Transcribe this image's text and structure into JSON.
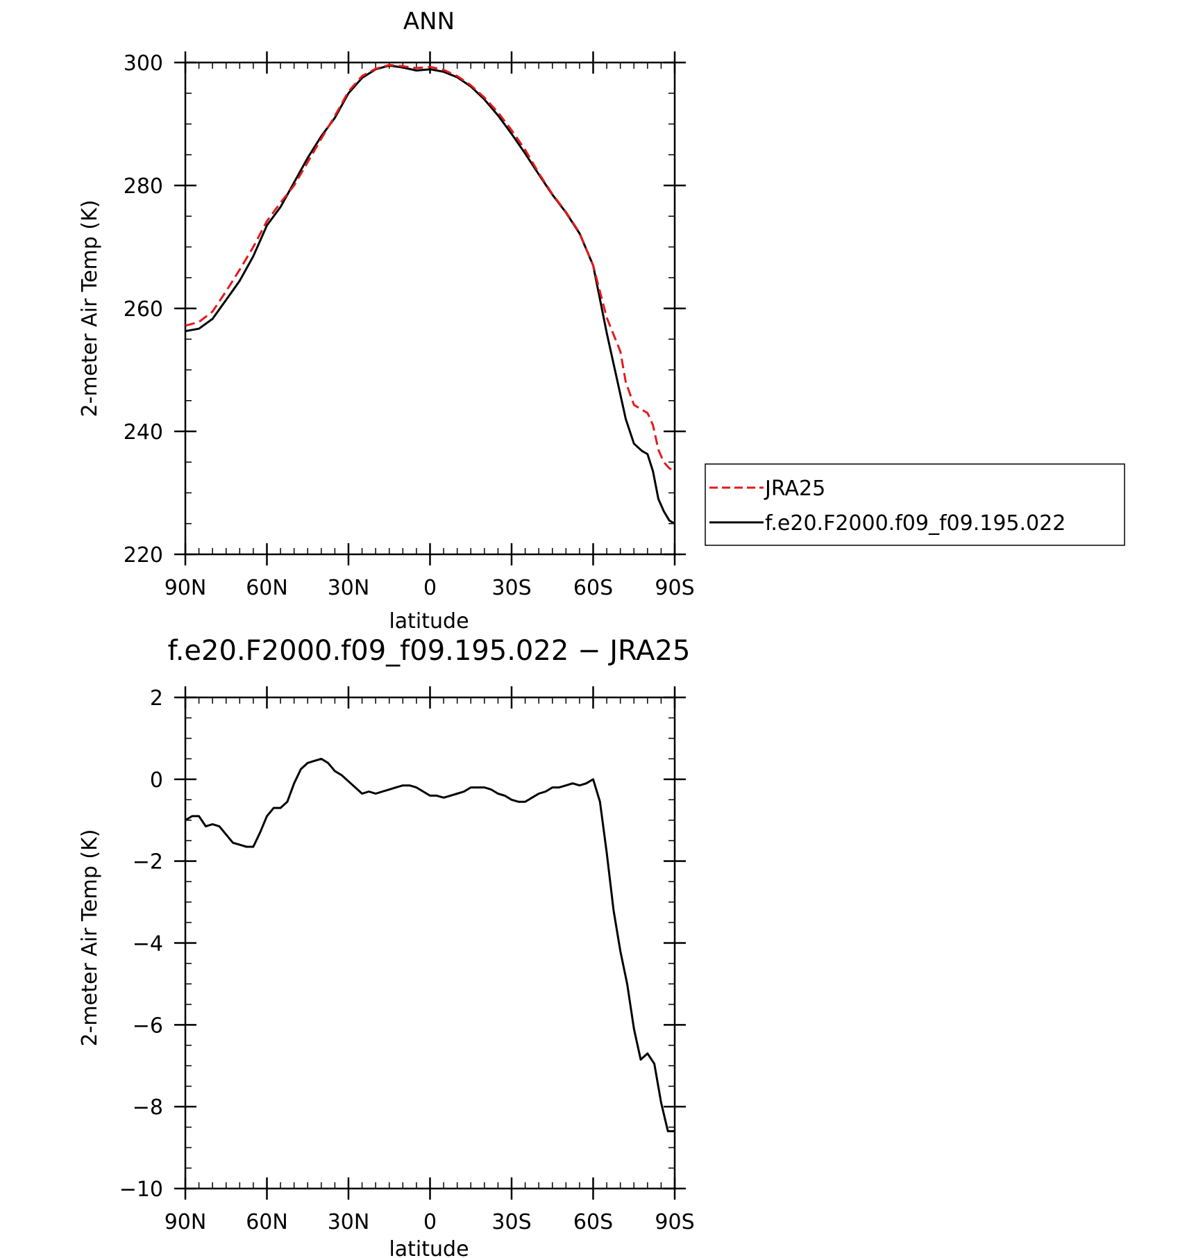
{
  "chart_data": [
    {
      "type": "line",
      "title": "ANN",
      "xlabel": "latitude",
      "ylabel": "2-meter Air Temp (K)",
      "xlim": [
        90,
        -90
      ],
      "ylim": [
        220,
        300
      ],
      "xticks": [
        {
          "value": 90,
          "label": "90N"
        },
        {
          "value": 60,
          "label": "60N"
        },
        {
          "value": 30,
          "label": "30N"
        },
        {
          "value": 0,
          "label": "0"
        },
        {
          "value": -30,
          "label": "30S"
        },
        {
          "value": -60,
          "label": "60S"
        },
        {
          "value": -90,
          "label": "90S"
        }
      ],
      "yticks": [
        {
          "value": 220,
          "label": "220"
        },
        {
          "value": 240,
          "label": "240"
        },
        {
          "value": 260,
          "label": "260"
        },
        {
          "value": 280,
          "label": "280"
        },
        {
          "value": 300,
          "label": "300"
        }
      ],
      "grid": false,
      "legend": "right",
      "series": [
        {
          "name": "JRA25",
          "color": "#e31a1c",
          "dash": "dashed",
          "x": [
            90,
            85,
            80,
            75,
            70,
            65,
            60,
            55,
            50,
            45,
            40,
            35,
            30,
            25,
            20,
            15,
            10,
            5,
            0,
            -5,
            -10,
            -15,
            -20,
            -25,
            -30,
            -35,
            -40,
            -45,
            -50,
            -55,
            -60,
            -65,
            -70,
            -72,
            -75,
            -78,
            -80,
            -82,
            -84,
            -86,
            -88,
            -90
          ],
          "y": [
            257.2,
            257.8,
            259.5,
            262.8,
            266.3,
            270.0,
            274.2,
            277.2,
            280.0,
            283.8,
            287.6,
            291.3,
            295.3,
            297.8,
            299.0,
            299.6,
            299.4,
            299.1,
            299.3,
            298.8,
            297.8,
            296.3,
            294.3,
            291.9,
            289.0,
            285.8,
            282.0,
            278.6,
            275.7,
            272.3,
            267.0,
            258.5,
            253.0,
            248.0,
            244.3,
            243.5,
            243.0,
            241.0,
            237.0,
            235.0,
            234.0,
            233.5
          ]
        },
        {
          "name": "f.e20.F2000.f09_f09.195.022",
          "color": "#000000",
          "dash": "solid",
          "x": [
            90,
            85,
            80,
            75,
            70,
            65,
            60,
            55,
            50,
            45,
            40,
            35,
            30,
            25,
            20,
            15,
            10,
            5,
            0,
            -5,
            -10,
            -15,
            -20,
            -25,
            -30,
            -35,
            -40,
            -45,
            -50,
            -55,
            -60,
            -65,
            -70,
            -72,
            -75,
            -78,
            -80,
            -82,
            -84,
            -86,
            -88,
            -90
          ],
          "y": [
            256.3,
            256.7,
            258.3,
            261.4,
            264.5,
            268.5,
            273.5,
            276.5,
            280.5,
            284.5,
            288.0,
            291.0,
            295.0,
            297.5,
            298.9,
            299.5,
            299.2,
            298.7,
            298.9,
            298.5,
            297.6,
            296.1,
            294.0,
            291.4,
            288.4,
            285.2,
            281.8,
            278.5,
            275.6,
            272.2,
            267.0,
            256.0,
            246.0,
            242.0,
            238.0,
            236.8,
            236.3,
            233.5,
            229.0,
            227.0,
            225.5,
            225.0
          ]
        }
      ]
    },
    {
      "type": "line",
      "title": "f.e20.F2000.f09_f09.195.022 − JRA25",
      "xlabel": "latitude",
      "ylabel": "2-meter Air Temp (K)",
      "xlim": [
        90,
        -90
      ],
      "ylim": [
        -10,
        2
      ],
      "xticks": [
        {
          "value": 90,
          "label": "90N"
        },
        {
          "value": 60,
          "label": "60N"
        },
        {
          "value": 30,
          "label": "30N"
        },
        {
          "value": 0,
          "label": "0"
        },
        {
          "value": -30,
          "label": "30S"
        },
        {
          "value": -60,
          "label": "60S"
        },
        {
          "value": -90,
          "label": "90S"
        }
      ],
      "yticks": [
        {
          "value": -10,
          "label": "−10"
        },
        {
          "value": -8,
          "label": "−8"
        },
        {
          "value": -6,
          "label": "−6"
        },
        {
          "value": -4,
          "label": "−4"
        },
        {
          "value": -2,
          "label": "−2"
        },
        {
          "value": 0,
          "label": "0"
        },
        {
          "value": 2,
          "label": "2"
        }
      ],
      "grid": false,
      "series": [
        {
          "color": "#000000",
          "dash": "solid",
          "x": [
            90,
            87.5,
            85,
            82.5,
            80,
            77.5,
            75,
            72.5,
            70,
            67.5,
            65,
            62.5,
            60,
            57.5,
            55,
            52.5,
            50,
            47.5,
            45,
            42.5,
            40,
            37.5,
            35,
            32.5,
            30,
            27.5,
            25,
            22.5,
            20,
            17.5,
            15,
            12.5,
            10,
            7.5,
            5,
            2.5,
            0,
            -2.5,
            -5,
            -7.5,
            -10,
            -12.5,
            -15,
            -17.5,
            -20,
            -22.5,
            -25,
            -27.5,
            -30,
            -32.5,
            -35,
            -37.5,
            -40,
            -42.5,
            -45,
            -47.5,
            -50,
            -52.5,
            -55,
            -57.5,
            -60,
            -62.5,
            -65,
            -67.5,
            -70,
            -72.5,
            -75,
            -77.5,
            -80,
            -82.5,
            -85,
            -87.5,
            -90
          ],
          "y": [
            -1.0,
            -0.9,
            -0.9,
            -1.15,
            -1.1,
            -1.15,
            -1.35,
            -1.55,
            -1.6,
            -1.65,
            -1.65,
            -1.3,
            -0.9,
            -0.7,
            -0.7,
            -0.55,
            -0.1,
            0.25,
            0.4,
            0.45,
            0.5,
            0.4,
            0.2,
            0.1,
            -0.05,
            -0.2,
            -0.35,
            -0.3,
            -0.35,
            -0.3,
            -0.25,
            -0.2,
            -0.15,
            -0.15,
            -0.2,
            -0.3,
            -0.4,
            -0.4,
            -0.45,
            -0.4,
            -0.35,
            -0.3,
            -0.2,
            -0.2,
            -0.2,
            -0.25,
            -0.35,
            -0.4,
            -0.5,
            -0.55,
            -0.55,
            -0.45,
            -0.35,
            -0.3,
            -0.2,
            -0.2,
            -0.15,
            -0.1,
            -0.15,
            -0.1,
            0.0,
            -0.55,
            -1.8,
            -3.2,
            -4.2,
            -5.0,
            -6.1,
            -6.85,
            -6.7,
            -6.95,
            -7.9,
            -8.6,
            -8.6
          ]
        }
      ]
    }
  ],
  "legend": {
    "entries": [
      {
        "label": "JRA25",
        "color": "#e31a1c",
        "dash": "dashed"
      },
      {
        "label": "f.e20.F2000.f09_f09.195.022",
        "color": "#000000",
        "dash": "solid"
      }
    ]
  }
}
